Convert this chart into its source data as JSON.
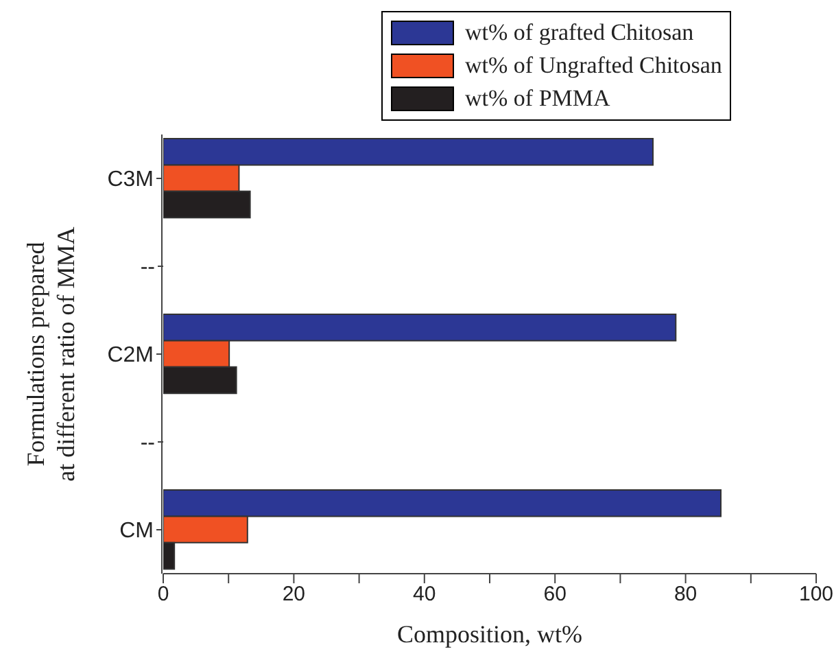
{
  "chart_data": {
    "type": "bar",
    "orientation": "horizontal",
    "xlabel": "Composition, wt%",
    "ylabel": "Formulations prepared\nat different ratio of MMA",
    "categories": [
      "C3M",
      "--",
      "C2M",
      "--",
      "CM"
    ],
    "series": [
      {
        "name": "wt% of grafted Chitosan",
        "color": "#2c3795",
        "values": [
          75.0,
          null,
          78.5,
          null,
          85.4
        ]
      },
      {
        "name": "wt% of Ungrafted Chitosan",
        "color": "#f05123",
        "values": [
          11.6,
          null,
          10.1,
          null,
          12.9
        ]
      },
      {
        "name": "wt% of PMMA",
        "color": "#231f20",
        "values": [
          13.3,
          null,
          11.2,
          null,
          1.7
        ]
      }
    ],
    "xlim": [
      0,
      100
    ],
    "xticks": [
      0,
      {
        "value": 10,
        "label": null
      },
      20,
      {
        "value": 30,
        "label": null
      },
      40,
      {
        "value": 50,
        "label": null
      },
      60,
      {
        "value": 70,
        "label": null
      },
      80,
      {
        "value": 90,
        "label": null
      },
      100
    ],
    "legend": "top",
    "grid": false
  }
}
